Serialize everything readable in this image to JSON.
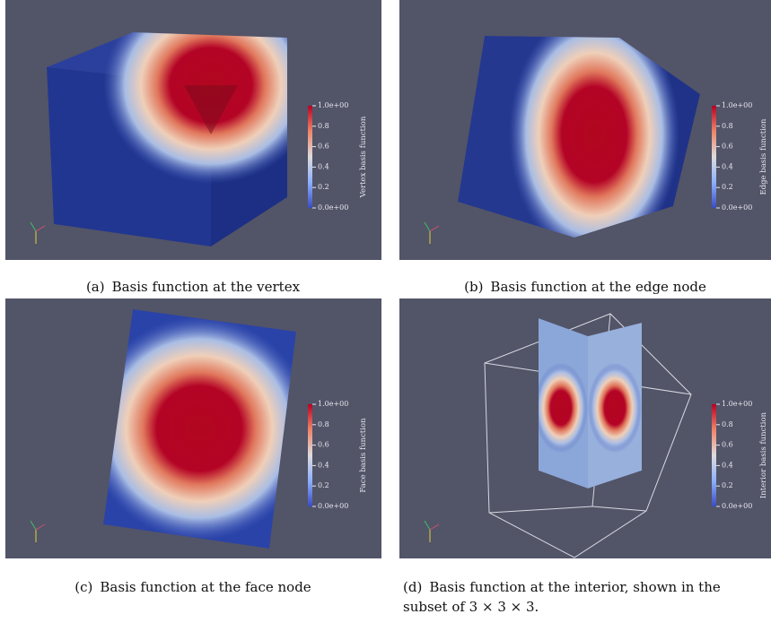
{
  "panels": [
    {
      "label": "(a)",
      "caption": "Basis function at the vertex",
      "colorbar": {
        "title": "Vertex basis function",
        "ticks": [
          "1.0e+00",
          "0.8",
          "0.6",
          "0.4",
          "0.2",
          "0.0e+00"
        ]
      }
    },
    {
      "label": "(b)",
      "caption": "Basis function at the edge node",
      "colorbar": {
        "title": "Edge basis function",
        "ticks": [
          "1.0e+00",
          "0.8",
          "0.6",
          "0.4",
          "0.2",
          "0.0e+00"
        ]
      }
    },
    {
      "label": "(c)",
      "caption": "Basis function at the face node",
      "colorbar": {
        "title": "Face basis function",
        "ticks": [
          "1.0e+00",
          "0.8",
          "0.6",
          "0.4",
          "0.2",
          "0.0e+00"
        ]
      }
    },
    {
      "label": "(d)",
      "caption": "Basis function at the interior, shown in the",
      "caption_continued": "subset of 3 × 3 × 3.",
      "colorbar": {
        "title": "Interior basis function",
        "ticks": [
          "1.0e+00",
          "0.8",
          "0.6",
          "0.4",
          "0.2",
          "0.0e+00"
        ]
      }
    }
  ]
}
